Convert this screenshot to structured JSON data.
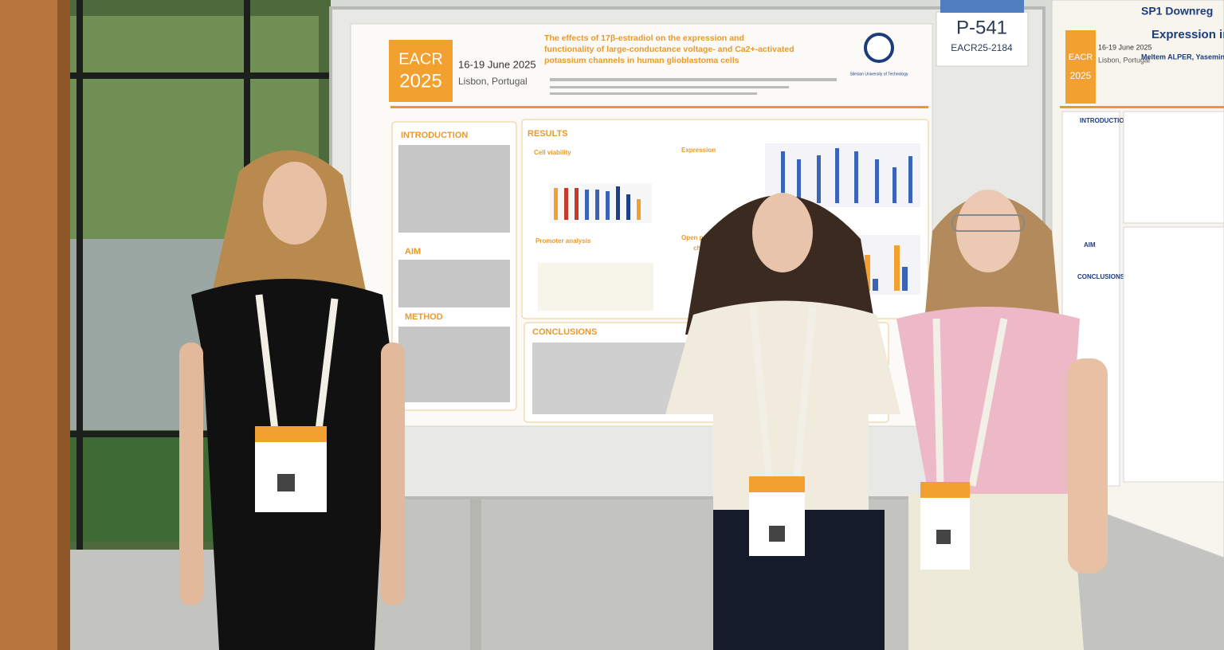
{
  "poster": {
    "logo_top": "EACR",
    "logo_bottom": "2025",
    "dates": "16-19 June 2025",
    "location": "Lisbon, Portugal",
    "title_lines": [
      "The effects of 17β-estradiol on the expression and",
      "functionality of large-conductance voltage- and Ca2+-activated",
      "potassium channels in human glioblastoma cells"
    ],
    "university": "Silesian University of Technology",
    "sections": {
      "introduction": "INTRODUCTION",
      "aim": "AIM",
      "method": "METHOD",
      "results": "RESULTS",
      "conclusions": "CONCLUSIONS"
    },
    "subsections": {
      "cell_viability": "Cell viability",
      "promoter_analysis": "Promoter analysis",
      "expression": "Expression",
      "open_probability": "Open probability",
      "channels": "channels"
    }
  },
  "board_label": {
    "number": "P-541",
    "code": "EACR25-2184"
  },
  "neighbor_poster": {
    "logo_top": "EACR",
    "logo_bottom": "2025",
    "dates": "16-19 June 2025",
    "location": "Lisbon, Portugal",
    "title_partial": "SP1 Downreg",
    "subtitle_partial": "Expression in Colore",
    "authors_partial": "Meltem ALPER, Yasemin KELEŞ",
    "sections": {
      "introduction": "INTRODUCTION",
      "aim": "AIM",
      "conclusions": "CONCLUSIONS"
    }
  }
}
